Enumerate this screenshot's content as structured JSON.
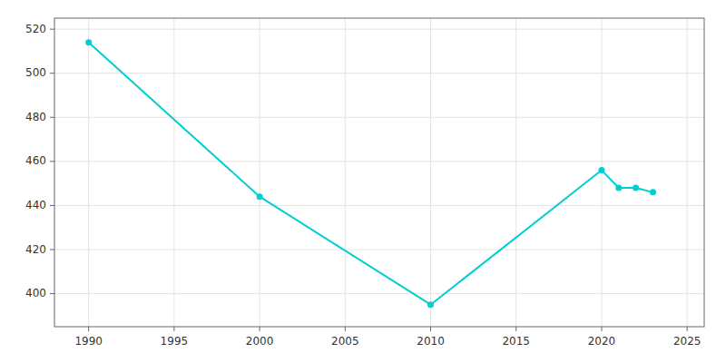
{
  "chart_data": {
    "type": "line",
    "x": [
      1990,
      2000,
      2010,
      2020,
      2021,
      2022,
      2023
    ],
    "values": [
      514,
      444,
      395,
      456,
      448,
      448,
      446
    ],
    "color": "#00CED1",
    "marker": "circle",
    "xlim": [
      1988,
      2026
    ],
    "xticks": [
      1990,
      1995,
      2000,
      2005,
      2010,
      2015,
      2020,
      2025
    ],
    "ylim": [
      385,
      525
    ],
    "yticks": [
      400,
      420,
      440,
      460,
      480,
      500,
      520
    ],
    "grid": true
  }
}
